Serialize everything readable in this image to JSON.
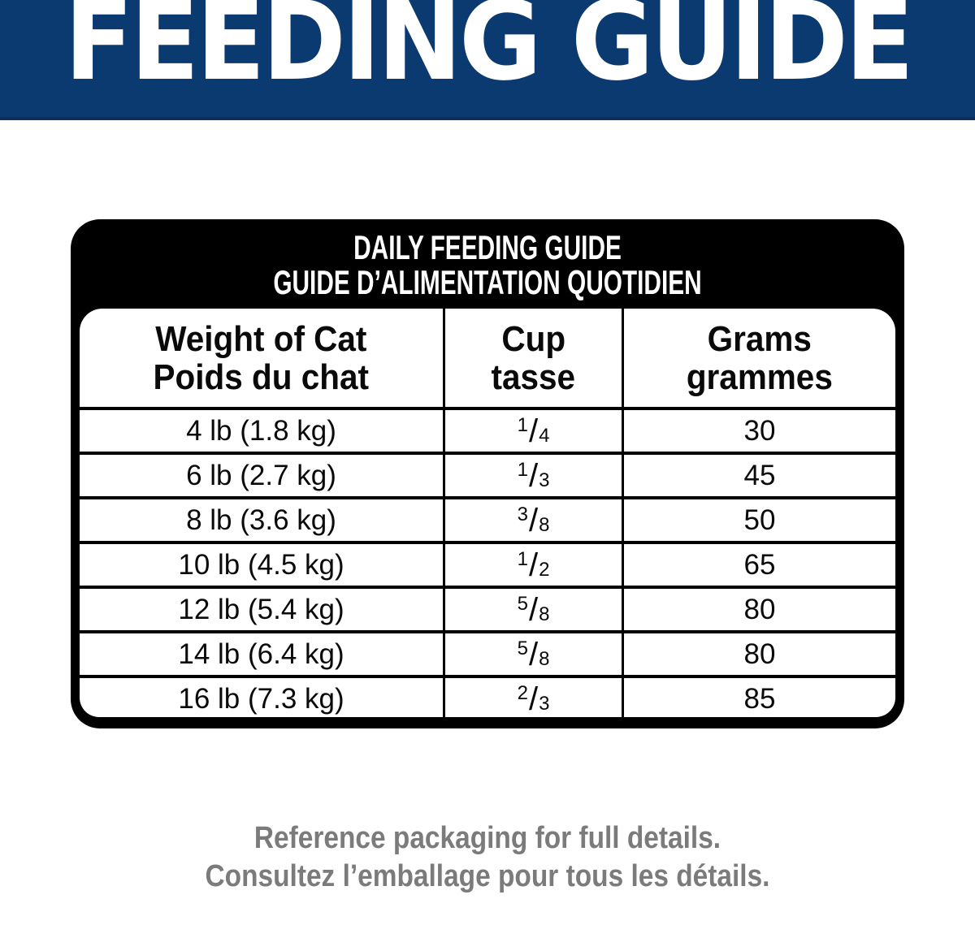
{
  "banner": {
    "title": "FEEDING GUIDE"
  },
  "feeding_table": {
    "title_line1": "DAILY FEEDING GUIDE",
    "title_line2": "GUIDE D’ALIMENTATION QUOTIDIEN",
    "columns": [
      {
        "line1": "Weight of Cat",
        "line2": "Poids du chat"
      },
      {
        "line1": "Cup",
        "line2": "tasse"
      },
      {
        "line1": "Grams",
        "line2": "grammes"
      }
    ],
    "fraction_separator": "/",
    "rows": [
      {
        "weight": "4 lb (1.8 kg)",
        "cup_num": "1",
        "cup_den": "4",
        "grams": "30"
      },
      {
        "weight": "6 lb (2.7 kg)",
        "cup_num": "1",
        "cup_den": "3",
        "grams": "45"
      },
      {
        "weight": "8 lb (3.6 kg)",
        "cup_num": "3",
        "cup_den": "8",
        "grams": "50"
      },
      {
        "weight": "10 lb (4.5 kg)",
        "cup_num": "1",
        "cup_den": "2",
        "grams": "65"
      },
      {
        "weight": "12 lb (5.4 kg)",
        "cup_num": "5",
        "cup_den": "8",
        "grams": "80"
      },
      {
        "weight": "14 lb (6.4 kg)",
        "cup_num": "5",
        "cup_den": "8",
        "grams": "80"
      },
      {
        "weight": "16 lb (7.3 kg)",
        "cup_num": "2",
        "cup_den": "3",
        "grams": "85"
      }
    ]
  },
  "footer": {
    "line1": "Reference packaging for full details.",
    "line2": "Consultez l’emballage pour tous les détails."
  },
  "colors": {
    "banner_blue": "#0b3a71",
    "banner_edge_blue": "#0a2f5c",
    "card_black": "#000000",
    "panel_white": "#ffffff",
    "footer_gray": "#7b7b7b"
  }
}
